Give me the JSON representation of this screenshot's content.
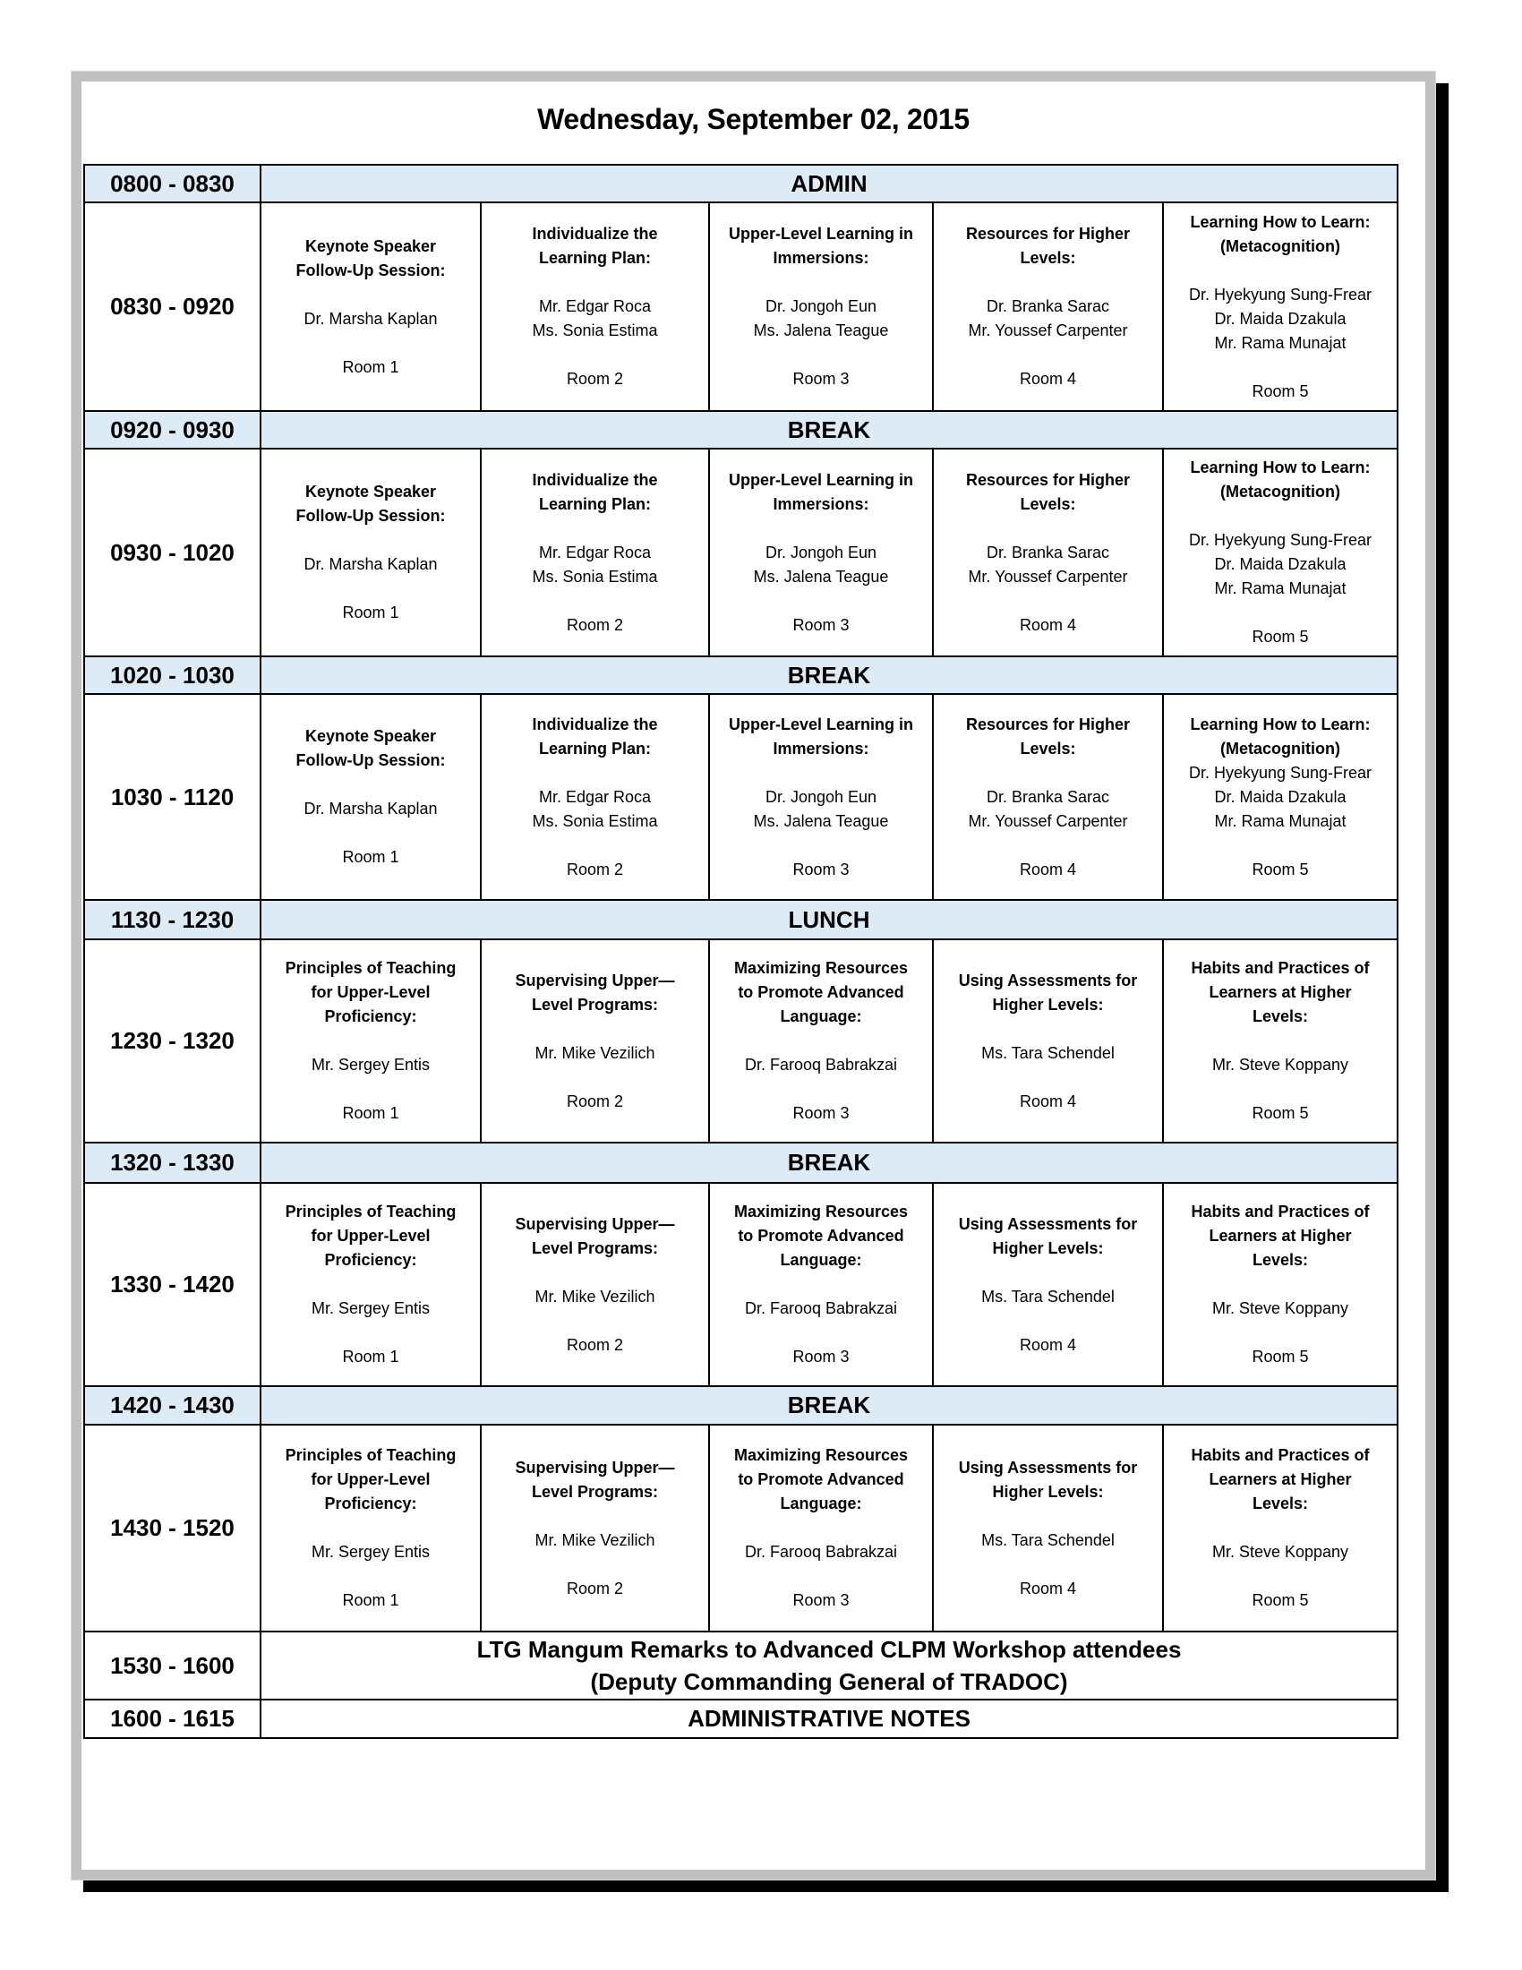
{
  "title": "Wednesday, September 02, 2015",
  "colors": {
    "banner_background": "#ddebf7",
    "border": "#000000"
  },
  "rows": [
    {
      "time": "0800 - 0830",
      "type": "banner",
      "label": "ADMIN"
    },
    {
      "time": "0830 - 0920",
      "type": "sessions",
      "sessions": [
        {
          "title": [
            "Keynote Speaker",
            "Follow-Up Session:"
          ],
          "body": [
            "",
            "Dr. Marsha Kaplan",
            "",
            "Room 1"
          ]
        },
        {
          "title": [
            "Individualize the",
            "Learning Plan:"
          ],
          "body": [
            "",
            "Mr. Edgar Roca",
            "Ms. Sonia Estima",
            "",
            "Room 2"
          ]
        },
        {
          "title": [
            "Upper-Level Learning in",
            "Immersions:"
          ],
          "body": [
            "",
            "Dr. Jongoh Eun",
            "Ms. Jalena Teague",
            "",
            "Room 3"
          ]
        },
        {
          "title": [
            "Resources for Higher",
            "Levels:"
          ],
          "body": [
            "",
            "Dr. Branka Sarac",
            "Mr. Youssef Carpenter",
            "",
            "Room 4"
          ]
        },
        {
          "title": [
            "Learning How to Learn:",
            "(Metacognition)"
          ],
          "body": [
            "",
            "Dr. Hyekyung Sung-Frear",
            "Dr. Maida Dzakula",
            "Mr. Rama Munajat",
            "",
            "Room 5"
          ]
        }
      ]
    },
    {
      "time": "0920 - 0930",
      "type": "banner",
      "label": "BREAK"
    },
    {
      "time": "0930 - 1020",
      "type": "sessions",
      "sessions": [
        {
          "title": [
            "Keynote Speaker",
            "Follow-Up Session:"
          ],
          "body": [
            "",
            "Dr. Marsha Kaplan",
            "",
            "Room 1"
          ]
        },
        {
          "title": [
            "Individualize the",
            "Learning Plan:"
          ],
          "body": [
            "",
            "Mr. Edgar Roca",
            "Ms. Sonia Estima",
            "",
            "Room 2"
          ]
        },
        {
          "title": [
            "Upper-Level Learning in",
            "Immersions:"
          ],
          "body": [
            "",
            "Dr. Jongoh Eun",
            "Ms. Jalena Teague",
            "",
            "Room 3"
          ]
        },
        {
          "title": [
            "Resources for Higher",
            "Levels:"
          ],
          "body": [
            "",
            "Dr. Branka Sarac",
            "Mr. Youssef Carpenter",
            "",
            "Room 4"
          ]
        },
        {
          "title": [
            "Learning How to Learn:",
            "(Metacognition)"
          ],
          "body": [
            "",
            "Dr. Hyekyung Sung-Frear",
            "Dr. Maida Dzakula",
            "Mr. Rama Munajat",
            "",
            "Room 5"
          ]
        }
      ]
    },
    {
      "time": "1020 - 1030",
      "type": "banner",
      "label": "BREAK"
    },
    {
      "time": "1030 - 1120",
      "type": "sessions",
      "sessions": [
        {
          "title": [
            "Keynote Speaker",
            "Follow-Up Session:"
          ],
          "body": [
            "",
            "Dr. Marsha Kaplan",
            "",
            "Room 1"
          ]
        },
        {
          "title": [
            "Individualize the",
            "Learning Plan:"
          ],
          "body": [
            "",
            "Mr. Edgar Roca",
            "Ms. Sonia Estima",
            "",
            "Room 2"
          ]
        },
        {
          "title": [
            "Upper-Level Learning in",
            "Immersions:"
          ],
          "body": [
            "",
            "Dr. Jongoh Eun",
            "Ms. Jalena Teague",
            "",
            "Room 3"
          ]
        },
        {
          "title": [
            "Resources for Higher",
            "Levels:"
          ],
          "body": [
            "",
            "Dr. Branka Sarac",
            "Mr. Youssef Carpenter",
            "",
            "Room 4"
          ]
        },
        {
          "title": [
            "Learning How to Learn:",
            "(Metacognition)"
          ],
          "body": [
            "Dr. Hyekyung Sung-Frear",
            "Dr. Maida Dzakula",
            "Mr. Rama Munajat",
            "",
            "Room 5"
          ]
        }
      ]
    },
    {
      "time": "1130 - 1230",
      "type": "banner",
      "label": "LUNCH"
    },
    {
      "time": "1230 - 1320",
      "type": "sessions",
      "sessions": [
        {
          "title": [
            "Principles of Teaching",
            "for Upper-Level",
            "Proficiency:"
          ],
          "body": [
            "",
            "Mr. Sergey Entis",
            "",
            "Room 1"
          ]
        },
        {
          "title": [
            "Supervising Upper—",
            "Level Programs:"
          ],
          "body": [
            "",
            "Mr. Mike Vezilich",
            "",
            "Room 2"
          ]
        },
        {
          "title": [
            "Maximizing Resources",
            "to Promote Advanced",
            "Language:"
          ],
          "body": [
            "",
            "Dr. Farooq Babrakzai",
            "",
            "Room 3"
          ]
        },
        {
          "title": [
            "Using Assessments for",
            "Higher Levels:"
          ],
          "body": [
            "",
            "Ms. Tara Schendel",
            "",
            "Room 4"
          ]
        },
        {
          "title": [
            "Habits and Practices of",
            "Learners at Higher",
            "Levels:"
          ],
          "body": [
            "",
            "Mr. Steve Koppany",
            "",
            "Room 5"
          ]
        }
      ]
    },
    {
      "time": "1320 - 1330",
      "type": "banner",
      "label": "BREAK"
    },
    {
      "time": "1330 - 1420",
      "type": "sessions",
      "sessions": [
        {
          "title": [
            "Principles of Teaching",
            "for Upper-Level",
            "Proficiency:"
          ],
          "body": [
            "",
            "Mr. Sergey Entis",
            "",
            "Room 1"
          ]
        },
        {
          "title": [
            "Supervising Upper—",
            "Level Programs:"
          ],
          "body": [
            "",
            "Mr. Mike Vezilich",
            "",
            "Room 2"
          ]
        },
        {
          "title": [
            "Maximizing Resources",
            "to Promote Advanced",
            "Language:"
          ],
          "body": [
            "",
            "Dr. Farooq Babrakzai",
            "",
            "Room 3"
          ]
        },
        {
          "title": [
            "Using Assessments for",
            "Higher Levels:"
          ],
          "body": [
            "",
            "Ms. Tara Schendel",
            "",
            "Room 4"
          ]
        },
        {
          "title": [
            "Habits and Practices of",
            "Learners at Higher",
            "Levels:"
          ],
          "body": [
            "",
            "Mr. Steve Koppany",
            "",
            "Room 5"
          ]
        }
      ]
    },
    {
      "time": "1420 - 1430",
      "type": "banner",
      "label": "BREAK"
    },
    {
      "time": "1430 - 1520",
      "type": "sessions",
      "sessions": [
        {
          "title": [
            "Principles of Teaching",
            "for Upper-Level",
            "Proficiency:"
          ],
          "body": [
            "",
            "Mr. Sergey Entis",
            "",
            "Room 1"
          ]
        },
        {
          "title": [
            "Supervising Upper—",
            "Level Programs:"
          ],
          "body": [
            "",
            "Mr. Mike Vezilich",
            "",
            "Room 2"
          ]
        },
        {
          "title": [
            "Maximizing Resources",
            "to Promote Advanced",
            "Language:"
          ],
          "body": [
            "",
            "Dr. Farooq Babrakzai",
            "",
            "Room 3"
          ]
        },
        {
          "title": [
            "Using Assessments for",
            "Higher Levels:"
          ],
          "body": [
            "",
            "Ms. Tara Schendel",
            "",
            "Room 4"
          ]
        },
        {
          "title": [
            "Habits and Practices of",
            "Learners at Higher",
            "Levels:"
          ],
          "body": [
            "",
            "Mr. Steve Koppany",
            "",
            "Room 5"
          ]
        }
      ]
    },
    {
      "time": "1530 - 1600",
      "type": "remarks",
      "lines": [
        "LTG Mangum Remarks to Advanced CLPM Workshop attendees",
        "(Deputy Commanding General of TRADOC)"
      ]
    },
    {
      "time": "1600 - 1615",
      "type": "plain",
      "label": "ADMINISTRATIVE NOTES"
    }
  ]
}
